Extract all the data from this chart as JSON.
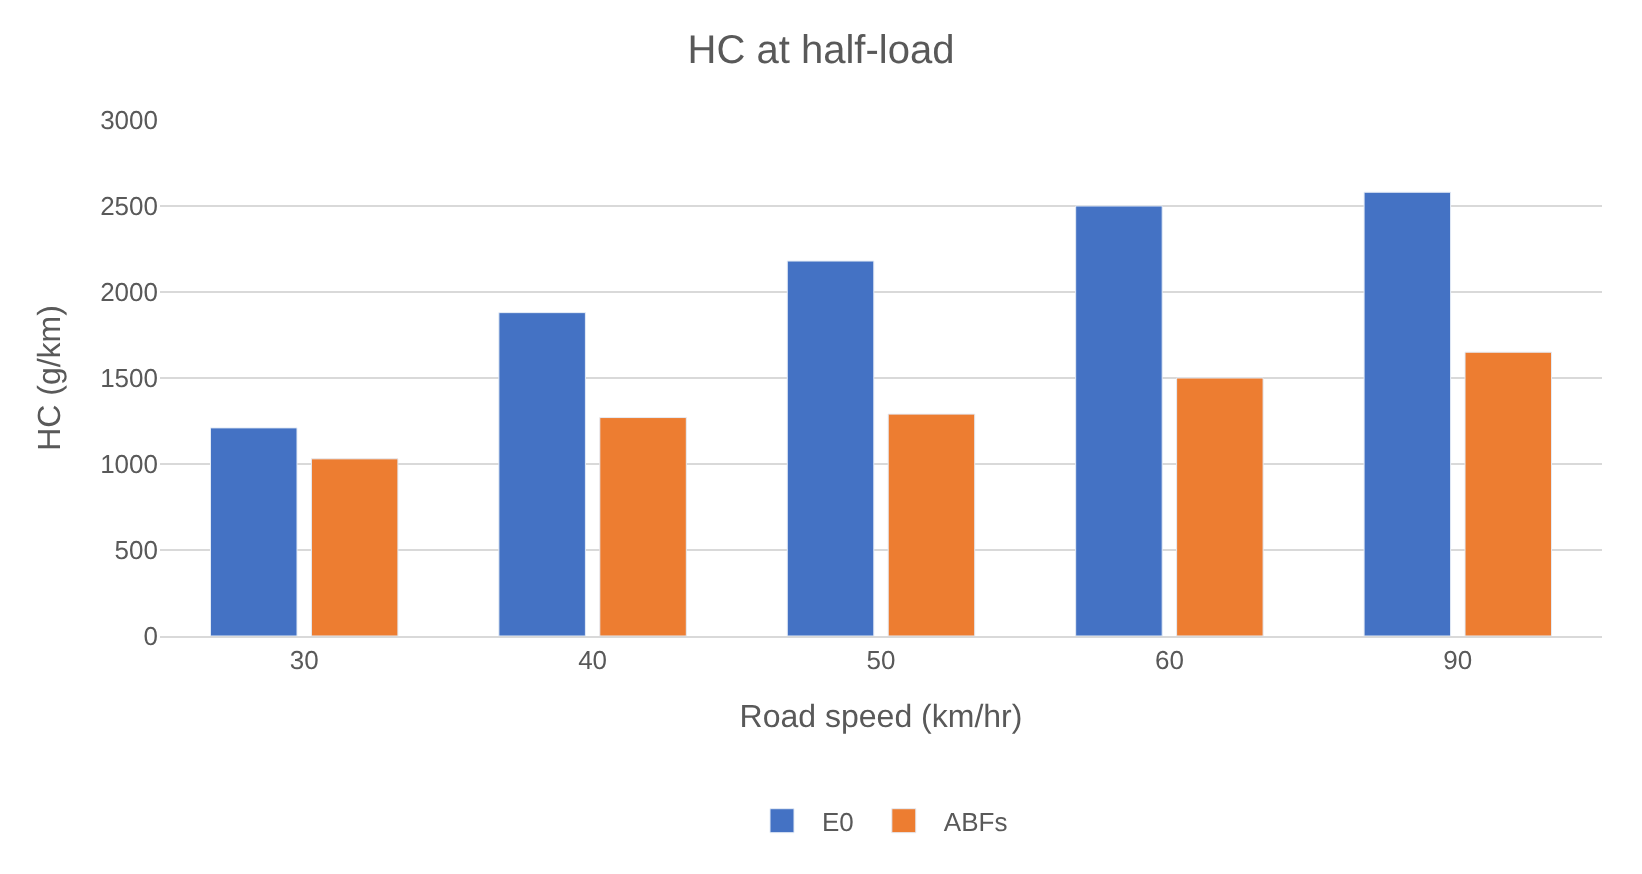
{
  "chart_data": {
    "type": "bar",
    "title": "HC at half-load",
    "xlabel": "Road speed (km/hr)",
    "ylabel": "HC (g/km)",
    "categories": [
      "30",
      "40",
      "50",
      "60",
      "90"
    ],
    "series": [
      {
        "name": "E0",
        "color": "#4472c4",
        "values": [
          1210,
          1880,
          2180,
          2500,
          2580
        ]
      },
      {
        "name": "ABFs",
        "color": "#ed7d31",
        "values": [
          1030,
          1270,
          1290,
          1500,
          1650
        ]
      }
    ],
    "ylim": [
      0,
      3000
    ],
    "yticks": [
      0,
      500,
      1000,
      1500,
      2000,
      2500,
      3000
    ],
    "grid": "y",
    "legend": "bottom"
  }
}
